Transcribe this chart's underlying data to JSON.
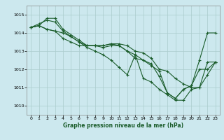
{
  "xlabel": "Graphe pression niveau de la mer (hPa)",
  "ylim": [
    1009.5,
    1015.5
  ],
  "xlim": [
    -0.5,
    23.5
  ],
  "yticks": [
    1010,
    1011,
    1012,
    1013,
    1014,
    1015
  ],
  "xticks": [
    0,
    1,
    2,
    3,
    4,
    5,
    6,
    7,
    8,
    9,
    10,
    11,
    12,
    13,
    14,
    15,
    16,
    17,
    18,
    19,
    20,
    21,
    22,
    23
  ],
  "bg_color": "#cce8ee",
  "grid_color": "#aacccc",
  "line_color": "#1a5c2a",
  "series": [
    [
      1014.3,
      1014.4,
      1014.2,
      1014.1,
      1014.0,
      1013.8,
      1013.5,
      1013.3,
      1013.3,
      1013.3,
      1013.4,
      1013.4,
      1013.3,
      1013.0,
      1012.9,
      1012.6,
      1012.0,
      1011.9,
      1011.5,
      1011.2,
      1011.0,
      1011.0,
      1012.4,
      1012.4
    ],
    [
      1014.3,
      1014.5,
      1014.7,
      1014.6,
      1014.1,
      1013.8,
      1013.5,
      1013.2,
      1013.0,
      1012.8,
      1012.5,
      1012.1,
      1011.7,
      1012.8,
      1011.5,
      1011.3,
      1010.9,
      1010.6,
      1010.3,
      1010.3,
      1010.9,
      1011.0,
      1011.7,
      1012.4
    ],
    [
      1014.3,
      1014.4,
      1014.8,
      1014.8,
      1014.2,
      1013.9,
      1013.6,
      1013.3,
      1013.3,
      1013.3,
      1013.4,
      1013.3,
      1013.0,
      1012.6,
      1012.5,
      1012.3,
      1011.6,
      1010.7,
      1010.4,
      1010.9,
      1011.1,
      1012.5,
      1014.0,
      1014.0
    ],
    [
      1014.3,
      1014.4,
      1014.2,
      1014.1,
      1013.7,
      1013.5,
      1013.3,
      1013.3,
      1013.3,
      1013.2,
      1013.3,
      1013.3,
      1013.0,
      1012.8,
      1012.5,
      1012.2,
      1011.9,
      1010.7,
      1010.4,
      1010.9,
      1011.1,
      1012.0,
      1012.0,
      1012.4
    ]
  ]
}
